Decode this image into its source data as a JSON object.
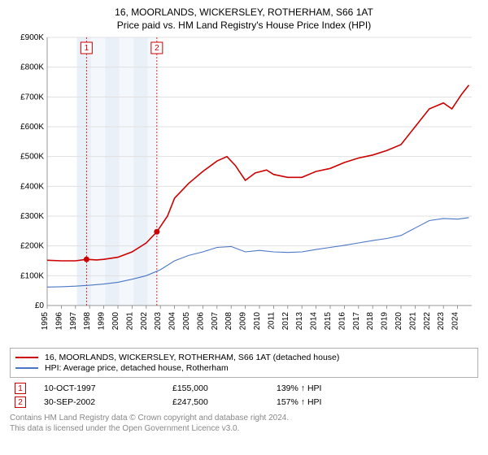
{
  "title_line1": "16, MOORLANDS, WICKERSLEY, ROTHERHAM, S66 1AT",
  "title_line2": "Price paid vs. HM Land Registry's House Price Index (HPI)",
  "chart": {
    "type": "line",
    "background_color": "#ffffff",
    "grid_color": "#e0e0e0",
    "axis_color": "#808080",
    "x_years": [
      "1995",
      "1996",
      "1997",
      "1998",
      "1999",
      "2000",
      "2001",
      "2002",
      "2003",
      "2004",
      "2005",
      "2006",
      "2007",
      "2008",
      "2009",
      "2010",
      "2011",
      "2012",
      "2013",
      "2014",
      "2015",
      "2016",
      "2017",
      "2018",
      "2019",
      "2020",
      "2021",
      "2022",
      "2023",
      "2024"
    ],
    "x_min": 1995,
    "x_max": 2025,
    "y_min": 0,
    "y_max": 900000,
    "y_tick_step": 100000,
    "y_tick_labels": [
      "£0",
      "£100K",
      "£200K",
      "£300K",
      "£400K",
      "£500K",
      "£600K",
      "£700K",
      "£800K",
      "£900K"
    ],
    "shaded_bands": [
      {
        "from": 1997.1,
        "to": 1998.1
      },
      {
        "from": 1998.1,
        "to": 1999.1,
        "lighter": true
      },
      {
        "from": 1999.1,
        "to": 2000.1
      },
      {
        "from": 2000.1,
        "to": 2001.1,
        "lighter": true
      },
      {
        "from": 2001.1,
        "to": 2002.1
      },
      {
        "from": 2002.1,
        "to": 2002.9,
        "lighter": true
      }
    ],
    "series": [
      {
        "key": "property",
        "label": "16, MOORLANDS, WICKERSLEY, ROTHERHAM, S66 1AT (detached house)",
        "color": "#cc0000",
        "line_width": 1.6,
        "points": [
          [
            1995.0,
            152000
          ],
          [
            1996.0,
            150000
          ],
          [
            1997.0,
            150000
          ],
          [
            1997.78,
            155000
          ],
          [
            1998.5,
            153000
          ],
          [
            1999.0,
            155000
          ],
          [
            2000.0,
            162000
          ],
          [
            2001.0,
            180000
          ],
          [
            2002.0,
            210000
          ],
          [
            2002.75,
            247500
          ],
          [
            2003.5,
            300000
          ],
          [
            2004.0,
            360000
          ],
          [
            2005.0,
            410000
          ],
          [
            2006.0,
            450000
          ],
          [
            2007.0,
            485000
          ],
          [
            2007.7,
            500000
          ],
          [
            2008.3,
            470000
          ],
          [
            2009.0,
            420000
          ],
          [
            2009.7,
            445000
          ],
          [
            2010.5,
            455000
          ],
          [
            2011.0,
            440000
          ],
          [
            2012.0,
            430000
          ],
          [
            2013.0,
            430000
          ],
          [
            2014.0,
            450000
          ],
          [
            2015.0,
            460000
          ],
          [
            2016.0,
            480000
          ],
          [
            2017.0,
            495000
          ],
          [
            2018.0,
            505000
          ],
          [
            2019.0,
            520000
          ],
          [
            2020.0,
            540000
          ],
          [
            2021.0,
            600000
          ],
          [
            2022.0,
            660000
          ],
          [
            2023.0,
            680000
          ],
          [
            2023.6,
            660000
          ],
          [
            2024.3,
            710000
          ],
          [
            2024.8,
            740000
          ]
        ]
      },
      {
        "key": "hpi",
        "label": "HPI: Average price, detached house, Rotherham",
        "color": "#4a77c4",
        "line_width": 1.1,
        "points": [
          [
            1995.0,
            62000
          ],
          [
            1996.0,
            63000
          ],
          [
            1997.0,
            65000
          ],
          [
            1998.0,
            68000
          ],
          [
            1999.0,
            72000
          ],
          [
            2000.0,
            78000
          ],
          [
            2001.0,
            88000
          ],
          [
            2002.0,
            100000
          ],
          [
            2003.0,
            120000
          ],
          [
            2004.0,
            150000
          ],
          [
            2005.0,
            168000
          ],
          [
            2006.0,
            180000
          ],
          [
            2007.0,
            195000
          ],
          [
            2008.0,
            198000
          ],
          [
            2009.0,
            180000
          ],
          [
            2010.0,
            185000
          ],
          [
            2011.0,
            180000
          ],
          [
            2012.0,
            178000
          ],
          [
            2013.0,
            180000
          ],
          [
            2014.0,
            188000
          ],
          [
            2015.0,
            195000
          ],
          [
            2016.0,
            202000
          ],
          [
            2017.0,
            210000
          ],
          [
            2018.0,
            218000
          ],
          [
            2019.0,
            225000
          ],
          [
            2020.0,
            235000
          ],
          [
            2021.0,
            260000
          ],
          [
            2022.0,
            285000
          ],
          [
            2023.0,
            292000
          ],
          [
            2024.0,
            290000
          ],
          [
            2024.8,
            295000
          ]
        ]
      }
    ],
    "markers": [
      {
        "num": "1",
        "x": 1997.78,
        "y": 155000
      },
      {
        "num": "2",
        "x": 2002.75,
        "y": 247500
      }
    ]
  },
  "legend": {
    "series1_label": "16, MOORLANDS, WICKERSLEY, ROTHERHAM, S66 1AT (detached house)",
    "series2_label": "HPI: Average price, detached house, Rotherham"
  },
  "transactions": [
    {
      "num": "1",
      "date": "10-OCT-1997",
      "price": "£155,000",
      "vs_hpi": "139% ↑ HPI"
    },
    {
      "num": "2",
      "date": "30-SEP-2002",
      "price": "£247,500",
      "vs_hpi": "157% ↑ HPI"
    }
  ],
  "footer_line1": "Contains HM Land Registry data © Crown copyright and database right 2024.",
  "footer_line2": "This data is licensed under the Open Government Licence v3.0.",
  "colors": {
    "red": "#cc0000",
    "blue": "#4a77c4",
    "grid": "#e0e0e0",
    "shade": "#eaf0f8",
    "footer": "#888888"
  }
}
